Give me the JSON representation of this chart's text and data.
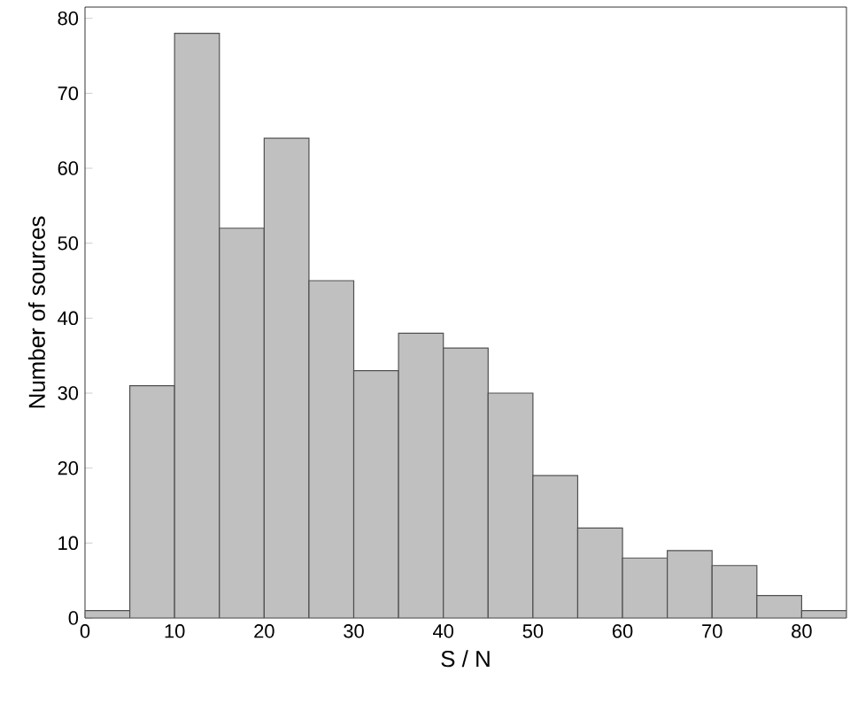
{
  "chart_data": {
    "type": "histogram",
    "xlabel": "S / N",
    "ylabel": "Number of sources",
    "bins": [
      0,
      5,
      10,
      15,
      20,
      25,
      30,
      35,
      40,
      45,
      50,
      55,
      60,
      65,
      70,
      75,
      80,
      85
    ],
    "values": [
      1,
      31,
      78,
      52,
      64,
      45,
      33,
      38,
      36,
      30,
      19,
      12,
      8,
      9,
      7,
      3,
      1
    ],
    "color": "#c0c0c0",
    "xlim": [
      0,
      85
    ],
    "ylim": [
      0,
      81.5
    ],
    "xticks": [
      0,
      10,
      20,
      30,
      40,
      50,
      60,
      70,
      80
    ],
    "yticks": [
      0,
      10,
      20,
      30,
      40,
      50,
      60,
      70,
      80
    ],
    "grid": false
  }
}
